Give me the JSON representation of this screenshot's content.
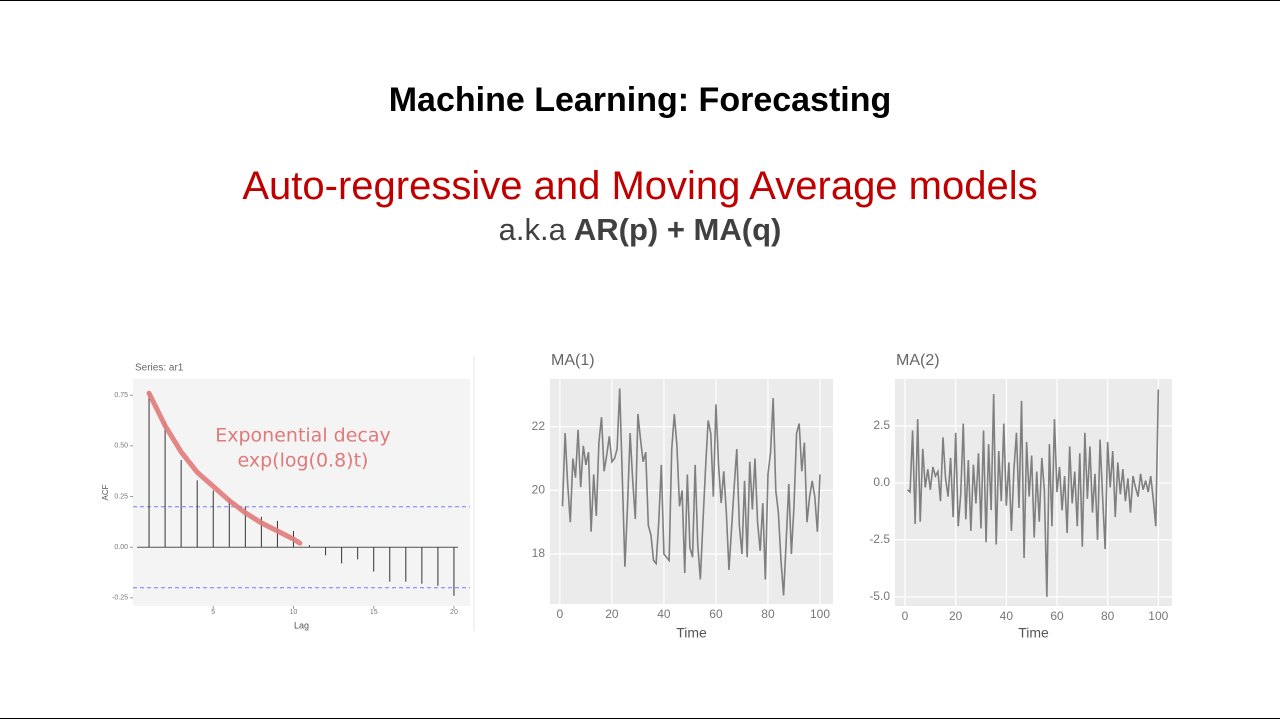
{
  "slide": {
    "title": "Machine Learning: Forecasting",
    "subtitle": "Auto-regressive and Moving Average models",
    "aka": "a.k.a",
    "aka_models": "AR(p) + MA(q)"
  },
  "chart_data": [
    {
      "type": "bar",
      "title": "Series: ar1",
      "xlabel": "Lag",
      "ylabel": "ACF",
      "color": "#333333",
      "x": [
        1,
        2,
        3,
        4,
        5,
        6,
        7,
        8,
        9,
        10,
        11,
        12,
        13,
        14,
        15,
        16,
        17,
        18,
        19,
        20
      ],
      "values": [
        0.77,
        0.62,
        0.43,
        0.33,
        0.28,
        0.24,
        0.2,
        0.15,
        0.13,
        0.08,
        0.01,
        -0.04,
        -0.08,
        -0.06,
        -0.12,
        -0.17,
        -0.17,
        -0.18,
        -0.19,
        -0.24
      ],
      "xlim": [
        0,
        21
      ],
      "ylim": [
        -0.29,
        0.83
      ],
      "xticks": [
        5,
        10,
        15,
        20
      ],
      "yticks": [
        {
          "value": -0.25,
          "label": "-0.25"
        },
        {
          "value": 0,
          "label": "0.00"
        },
        0.25,
        {
          "value": 0.5,
          "label": "0.50"
        },
        0.75
      ],
      "ci_lines": [
        0.2,
        -0.2
      ],
      "ci_color": "#7b7bff",
      "annotation": [
        "Exponential decay",
        "exp(log(0.8)t)"
      ],
      "curve": {
        "color": "#e07a7a",
        "x": [
          1,
          2,
          3,
          4,
          5,
          6,
          7,
          8,
          9,
          10,
          10.4
        ],
        "values": [
          0.76,
          0.6,
          0.47,
          0.37,
          0.3,
          0.23,
          0.17,
          0.12,
          0.08,
          0.04,
          0.02
        ]
      }
    },
    {
      "type": "line",
      "title": "MA(1)",
      "xlabel": "Time",
      "color": "#7f7f7f",
      "grid": true,
      "x": [
        1,
        2,
        3,
        4,
        5,
        6,
        7,
        8,
        9,
        10,
        11,
        12,
        13,
        14,
        15,
        16,
        17,
        18,
        19,
        20,
        21,
        22,
        23,
        24,
        25,
        26,
        27,
        28,
        29,
        30,
        31,
        32,
        33,
        34,
        35,
        36,
        37,
        38,
        39,
        40,
        41,
        42,
        43,
        44,
        45,
        46,
        47,
        48,
        49,
        50,
        51,
        52,
        53,
        54,
        55,
        56,
        57,
        58,
        59,
        60,
        61,
        62,
        63,
        64,
        65,
        66,
        67,
        68,
        69,
        70,
        71,
        72,
        73,
        74,
        75,
        76,
        77,
        78,
        79,
        80,
        81,
        82,
        83,
        84,
        85,
        86,
        87,
        88,
        89,
        90,
        91,
        92,
        93,
        94,
        95,
        96,
        97,
        98,
        99,
        100
      ],
      "values": [
        19.5,
        21.8,
        20.2,
        19.0,
        21.0,
        20.4,
        21.9,
        20.1,
        21.4,
        20.8,
        21.2,
        18.7,
        20.5,
        19.2,
        21.5,
        22.3,
        20.6,
        21.1,
        21.7,
        20.9,
        21.0,
        21.3,
        23.2,
        20.4,
        17.6,
        19.5,
        21.8,
        20.3,
        19.1,
        22.4,
        21.6,
        20.9,
        21.2,
        18.9,
        18.6,
        17.8,
        17.7,
        19.0,
        20.8,
        18.0,
        17.9,
        17.8,
        21.3,
        22.4,
        21.4,
        19.5,
        20.0,
        17.4,
        20.5,
        18.2,
        17.9,
        20.8,
        18.3,
        17.2,
        19.0,
        20.7,
        22.2,
        21.8,
        19.8,
        22.7,
        20.8,
        19.6,
        20.6,
        19.3,
        17.5,
        18.8,
        20.1,
        21.3,
        18.9,
        18.0,
        20.3,
        17.9,
        20.9,
        19.4,
        21.0,
        19.0,
        18.1,
        19.6,
        17.2,
        20.5,
        21.2,
        22.9,
        20.0,
        19.3,
        17.8,
        16.7,
        18.4,
        20.2,
        18.0,
        19.5,
        21.8,
        22.1,
        20.6,
        21.5,
        19.0,
        19.8,
        20.3,
        19.8,
        18.7,
        20.5
      ],
      "xlim": [
        -3.8,
        105
      ],
      "ylim": [
        16.43,
        23.5
      ],
      "xticks": [
        0,
        20,
        40,
        60,
        80,
        100
      ],
      "yticks": [
        18,
        20,
        22
      ]
    },
    {
      "type": "line",
      "title": "MA(2)",
      "xlabel": "Time",
      "color": "#7f7f7f",
      "grid": true,
      "x": [
        1,
        2,
        3,
        4,
        5,
        6,
        7,
        8,
        9,
        10,
        11,
        12,
        13,
        14,
        15,
        16,
        17,
        18,
        19,
        20,
        21,
        22,
        23,
        24,
        25,
        26,
        27,
        28,
        29,
        30,
        31,
        32,
        33,
        34,
        35,
        36,
        37,
        38,
        39,
        40,
        41,
        42,
        43,
        44,
        45,
        46,
        47,
        48,
        49,
        50,
        51,
        52,
        53,
        54,
        55,
        56,
        57,
        58,
        59,
        60,
        61,
        62,
        63,
        64,
        65,
        66,
        67,
        68,
        69,
        70,
        71,
        72,
        73,
        74,
        75,
        76,
        77,
        78,
        79,
        80,
        81,
        82,
        83,
        84,
        85,
        86,
        87,
        88,
        89,
        90,
        91,
        92,
        93,
        94,
        95,
        96,
        97,
        98,
        99,
        100
      ],
      "values": [
        -0.3,
        -0.4,
        2.3,
        -1.8,
        2.8,
        -1.7,
        1.5,
        -0.2,
        0.6,
        -0.3,
        0.7,
        0.3,
        0.5,
        -0.8,
        2.0,
        0.2,
        -0.6,
        1.1,
        -1.5,
        2.2,
        -1.9,
        -0.5,
        2.6,
        -1.6,
        1.0,
        -2.1,
        0.8,
        -0.9,
        1.3,
        -2.0,
        2.3,
        -2.6,
        1.7,
        -1.2,
        3.9,
        -2.7,
        1.4,
        -0.8,
        2.6,
        -1.0,
        0.9,
        -2.1,
        0.6,
        2.2,
        -1.1,
        3.6,
        -3.3,
        1.8,
        -0.6,
        1.2,
        -2.4,
        0.5,
        -1.7,
        1.1,
        -0.3,
        -5.0,
        1.7,
        -1.9,
        2.8,
        -0.4,
        0.7,
        -1.2,
        0.3,
        -2.2,
        1.6,
        -0.9,
        0.5,
        -1.9,
        1.3,
        -2.8,
        2.2,
        -0.7,
        1.6,
        -1.3,
        0.4,
        -2.5,
        1.9,
        -0.6,
        -2.9,
        1.8,
        -0.2,
        1.4,
        -1.5,
        0.9,
        -0.5,
        0.6,
        -0.8,
        0.2,
        -1.3,
        0.3,
        -0.2,
        -0.6,
        0.4,
        -0.3,
        0.1,
        -0.4,
        0.3,
        -0.7,
        -1.9,
        4.1
      ],
      "xlim": [
        -3.95,
        105.4
      ],
      "ylim": [
        -5.4,
        4.56
      ],
      "xticks": [
        0,
        20,
        40,
        60,
        80,
        100
      ],
      "yticks": [
        {
          "value": -5,
          "label": "-5.0"
        },
        -2.5,
        {
          "value": 0,
          "label": "0.0"
        },
        2.5
      ]
    }
  ]
}
